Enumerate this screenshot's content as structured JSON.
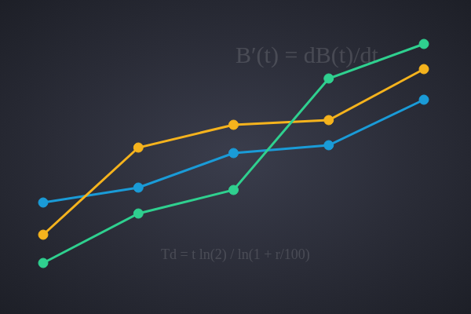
{
  "chart_data": {
    "type": "line",
    "categories": [
      null,
      null,
      null,
      null,
      null
    ],
    "ylim": [
      0,
      400
    ],
    "tick_labels": false,
    "grid": false,
    "marker": "circle",
    "annotations": [
      "B′(t) = dB(t)/dt",
      "Td = t ln(2) / ln(1 + r/100)"
    ],
    "series": [
      {
        "color": "#1a9bd7",
        "values": [
          142,
          161,
          205,
          215,
          273
        ]
      },
      {
        "color": "#f5b31d",
        "values": [
          101,
          212,
          241,
          247,
          312
        ]
      },
      {
        "color": "#2fd08f",
        "values": [
          65,
          128,
          158,
          300,
          344
        ]
      }
    ]
  }
}
